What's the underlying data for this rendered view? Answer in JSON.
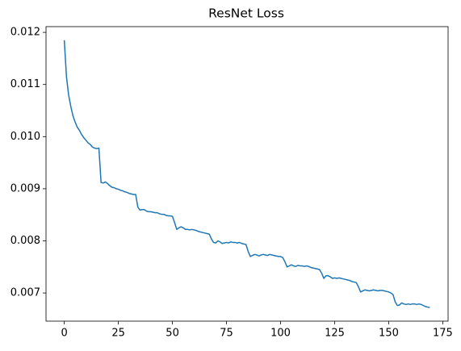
{
  "chart_data": {
    "type": "line",
    "title": "ResNet Loss",
    "x": [
      0,
      1,
      2,
      3,
      4,
      5,
      6,
      7,
      8,
      9,
      10,
      11,
      12,
      13,
      14,
      15,
      16,
      17,
      18,
      19,
      20,
      21,
      22,
      23,
      24,
      25,
      26,
      27,
      28,
      29,
      30,
      31,
      32,
      33,
      34,
      35,
      36,
      37,
      38,
      39,
      40,
      41,
      42,
      43,
      44,
      45,
      46,
      47,
      48,
      49,
      50,
      51,
      52,
      53,
      54,
      55,
      56,
      57,
      58,
      59,
      60,
      61,
      62,
      63,
      64,
      65,
      66,
      67,
      68,
      69,
      70,
      71,
      72,
      73,
      74,
      75,
      76,
      77,
      78,
      79,
      80,
      81,
      82,
      83,
      84,
      85,
      86,
      87,
      88,
      89,
      90,
      91,
      92,
      93,
      94,
      95,
      96,
      97,
      98,
      99,
      100,
      101,
      102,
      103,
      104,
      105,
      106,
      107,
      108,
      109,
      110,
      111,
      112,
      113,
      114,
      115,
      116,
      117,
      118,
      119,
      120,
      121,
      122,
      123,
      124,
      125,
      126,
      127,
      128,
      129,
      130,
      131,
      132,
      133,
      134,
      135,
      136,
      137,
      138,
      139,
      140,
      141,
      142,
      143,
      144,
      145,
      146,
      147,
      148,
      149,
      150,
      151,
      152,
      153,
      154,
      155,
      156,
      157,
      158,
      159,
      160,
      161,
      162,
      163,
      164,
      165,
      166,
      167,
      168,
      169
    ],
    "series": [
      {
        "color": "#1f77b4",
        "values": [
          0.01185,
          0.01115,
          0.0108,
          0.01058,
          0.0104,
          0.01028,
          0.01018,
          0.01012,
          0.01004,
          0.00998,
          0.00993,
          0.00988,
          0.00985,
          0.0098,
          0.00978,
          0.00977,
          0.00978,
          0.00912,
          0.00911,
          0.00913,
          0.0091,
          0.00906,
          0.00903,
          0.00902,
          0.009,
          0.00899,
          0.00897,
          0.00896,
          0.00894,
          0.00893,
          0.00891,
          0.0089,
          0.00889,
          0.00889,
          0.00865,
          0.00859,
          0.0086,
          0.0086,
          0.00857,
          0.00856,
          0.00856,
          0.00855,
          0.00854,
          0.00854,
          0.00852,
          0.00851,
          0.00851,
          0.00849,
          0.00848,
          0.00848,
          0.00847,
          0.00835,
          0.00822,
          0.00825,
          0.00827,
          0.00825,
          0.00822,
          0.00822,
          0.00821,
          0.00822,
          0.00821,
          0.0082,
          0.00818,
          0.00817,
          0.00816,
          0.00815,
          0.00814,
          0.00813,
          0.00804,
          0.00797,
          0.00796,
          0.008,
          0.00798,
          0.00795,
          0.00796,
          0.00797,
          0.00796,
          0.00798,
          0.00797,
          0.00797,
          0.00796,
          0.00797,
          0.00795,
          0.00794,
          0.00793,
          0.0078,
          0.0077,
          0.00772,
          0.00774,
          0.00773,
          0.00771,
          0.00773,
          0.00774,
          0.00773,
          0.00772,
          0.00774,
          0.00773,
          0.00772,
          0.00771,
          0.0077,
          0.0077,
          0.00768,
          0.0076,
          0.0075,
          0.00752,
          0.00754,
          0.00752,
          0.00751,
          0.00753,
          0.00752,
          0.00752,
          0.00751,
          0.00752,
          0.00751,
          0.00749,
          0.00748,
          0.00747,
          0.00746,
          0.00745,
          0.00738,
          0.00728,
          0.00733,
          0.00733,
          0.00731,
          0.00728,
          0.00729,
          0.00728,
          0.00729,
          0.00728,
          0.00727,
          0.00726,
          0.00725,
          0.00724,
          0.00722,
          0.00721,
          0.0072,
          0.00712,
          0.00702,
          0.00704,
          0.00706,
          0.00705,
          0.00704,
          0.00705,
          0.00706,
          0.00705,
          0.00704,
          0.00705,
          0.00705,
          0.00704,
          0.00703,
          0.00702,
          0.007,
          0.00697,
          0.00683,
          0.00676,
          0.00677,
          0.00681,
          0.00679,
          0.00678,
          0.00679,
          0.00678,
          0.00679,
          0.00679,
          0.00678,
          0.00679,
          0.00678,
          0.00676,
          0.00674,
          0.00673,
          0.00672
        ]
      }
    ],
    "xlim": [
      -8.45,
      177.45
    ],
    "xticks": [
      0,
      25,
      50,
      75,
      100,
      125,
      150,
      175
    ],
    "ylim": [
      0.00646,
      0.01211
    ],
    "yticks": [
      0.007,
      0.008,
      0.009,
      {
        "value": 0.01,
        "label": "0.010"
      },
      0.011,
      0.012
    ],
    "grid": false
  }
}
